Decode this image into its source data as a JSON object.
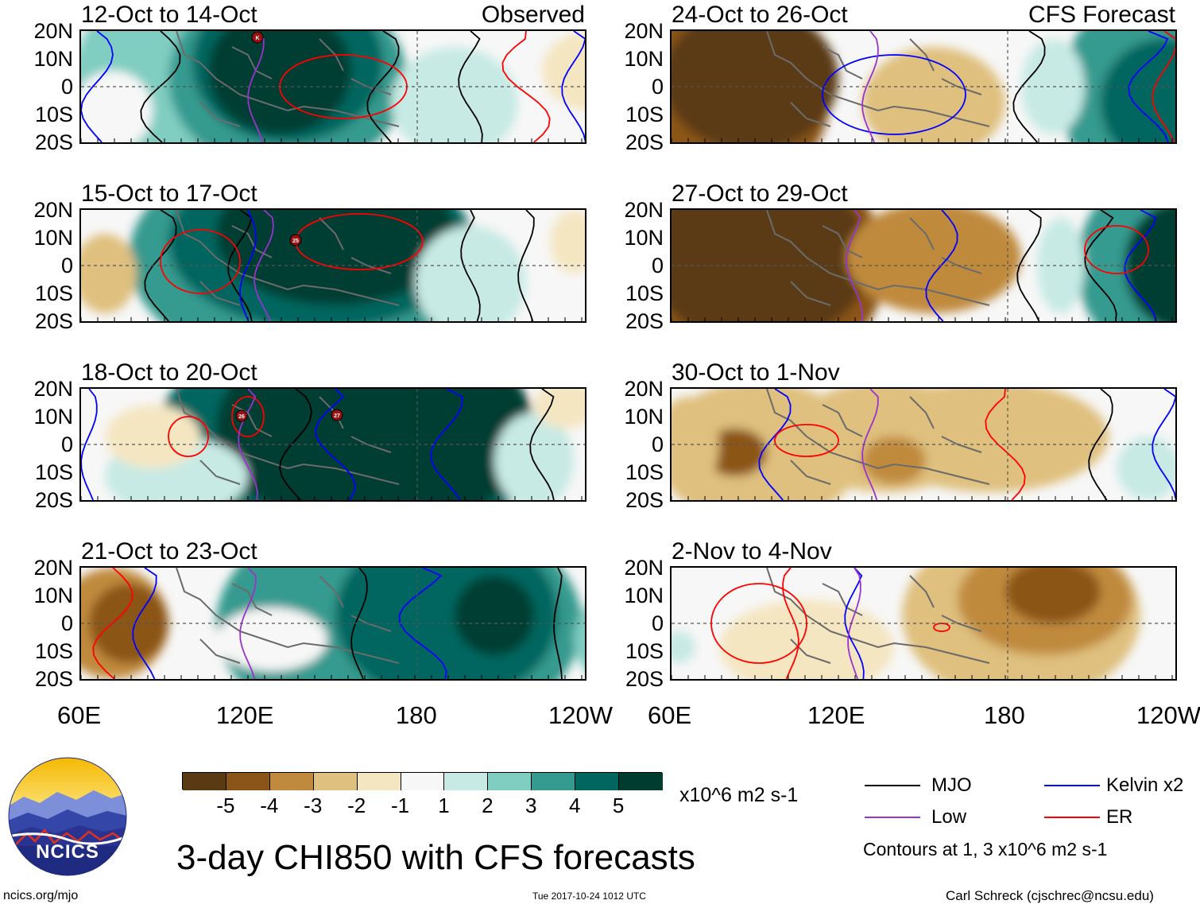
{
  "title": "3-day CHI850 with CFS forecasts",
  "units": "x10^6 m2 s-1",
  "lat_labels": [
    "20N",
    "10N",
    "0",
    "10S",
    "20S"
  ],
  "lon_labels": [
    "60E",
    "120E",
    "180",
    "120W"
  ],
  "lon_labels_right": [
    "60E",
    "120E",
    "180",
    "120W"
  ],
  "observed_panels": [
    {
      "title": "12-Oct to 14-Oct",
      "tag": "Observed"
    },
    {
      "title": "15-Oct to 17-Oct",
      "tag": ""
    },
    {
      "title": "18-Oct to 20-Oct",
      "tag": ""
    },
    {
      "title": "21-Oct to 23-Oct",
      "tag": ""
    }
  ],
  "forecast_panels": [
    {
      "title": "24-Oct to 26-Oct",
      "tag": "CFS Forecast"
    },
    {
      "title": "27-Oct to 29-Oct",
      "tag": ""
    },
    {
      "title": "30-Oct to 1-Nov",
      "tag": ""
    },
    {
      "title": "2-Nov to 4-Nov",
      "tag": ""
    }
  ],
  "storm_markers": [
    {
      "panel": 0,
      "label": "K"
    },
    {
      "panel": 1,
      "label": "25"
    },
    {
      "panel": 2,
      "label": "26"
    },
    {
      "panel": 2,
      "label": "27"
    }
  ],
  "colorbar": {
    "colors": [
      "#5a3a12",
      "#8b5519",
      "#c08a3e",
      "#dfc07e",
      "#f5e6c2",
      "#f7f7f7",
      "#c7eae4",
      "#80cdc1",
      "#359a8f",
      "#01665e",
      "#003c30"
    ],
    "ticks": [
      "-5",
      "-4",
      "-3",
      "-2",
      "-1",
      "1",
      "2",
      "3",
      "4",
      "5"
    ]
  },
  "legend": {
    "items": [
      {
        "label": "MJO",
        "color": "#000000"
      },
      {
        "label": "Kelvin x2",
        "color": "#0000ff"
      },
      {
        "label": "Low",
        "color": "#9933cc"
      },
      {
        "label": "ER",
        "color": "#ff0000"
      }
    ],
    "note": "Contours at 1, 3 x10^6 m2 s-1"
  },
  "logo_text": "NCICS",
  "footer": {
    "left": "ncics.org/mjo",
    "center": "Tue 2017-10-24 1012 UTC",
    "right": "Carl Schreck (cjschrec@ncsu.edu)"
  }
}
